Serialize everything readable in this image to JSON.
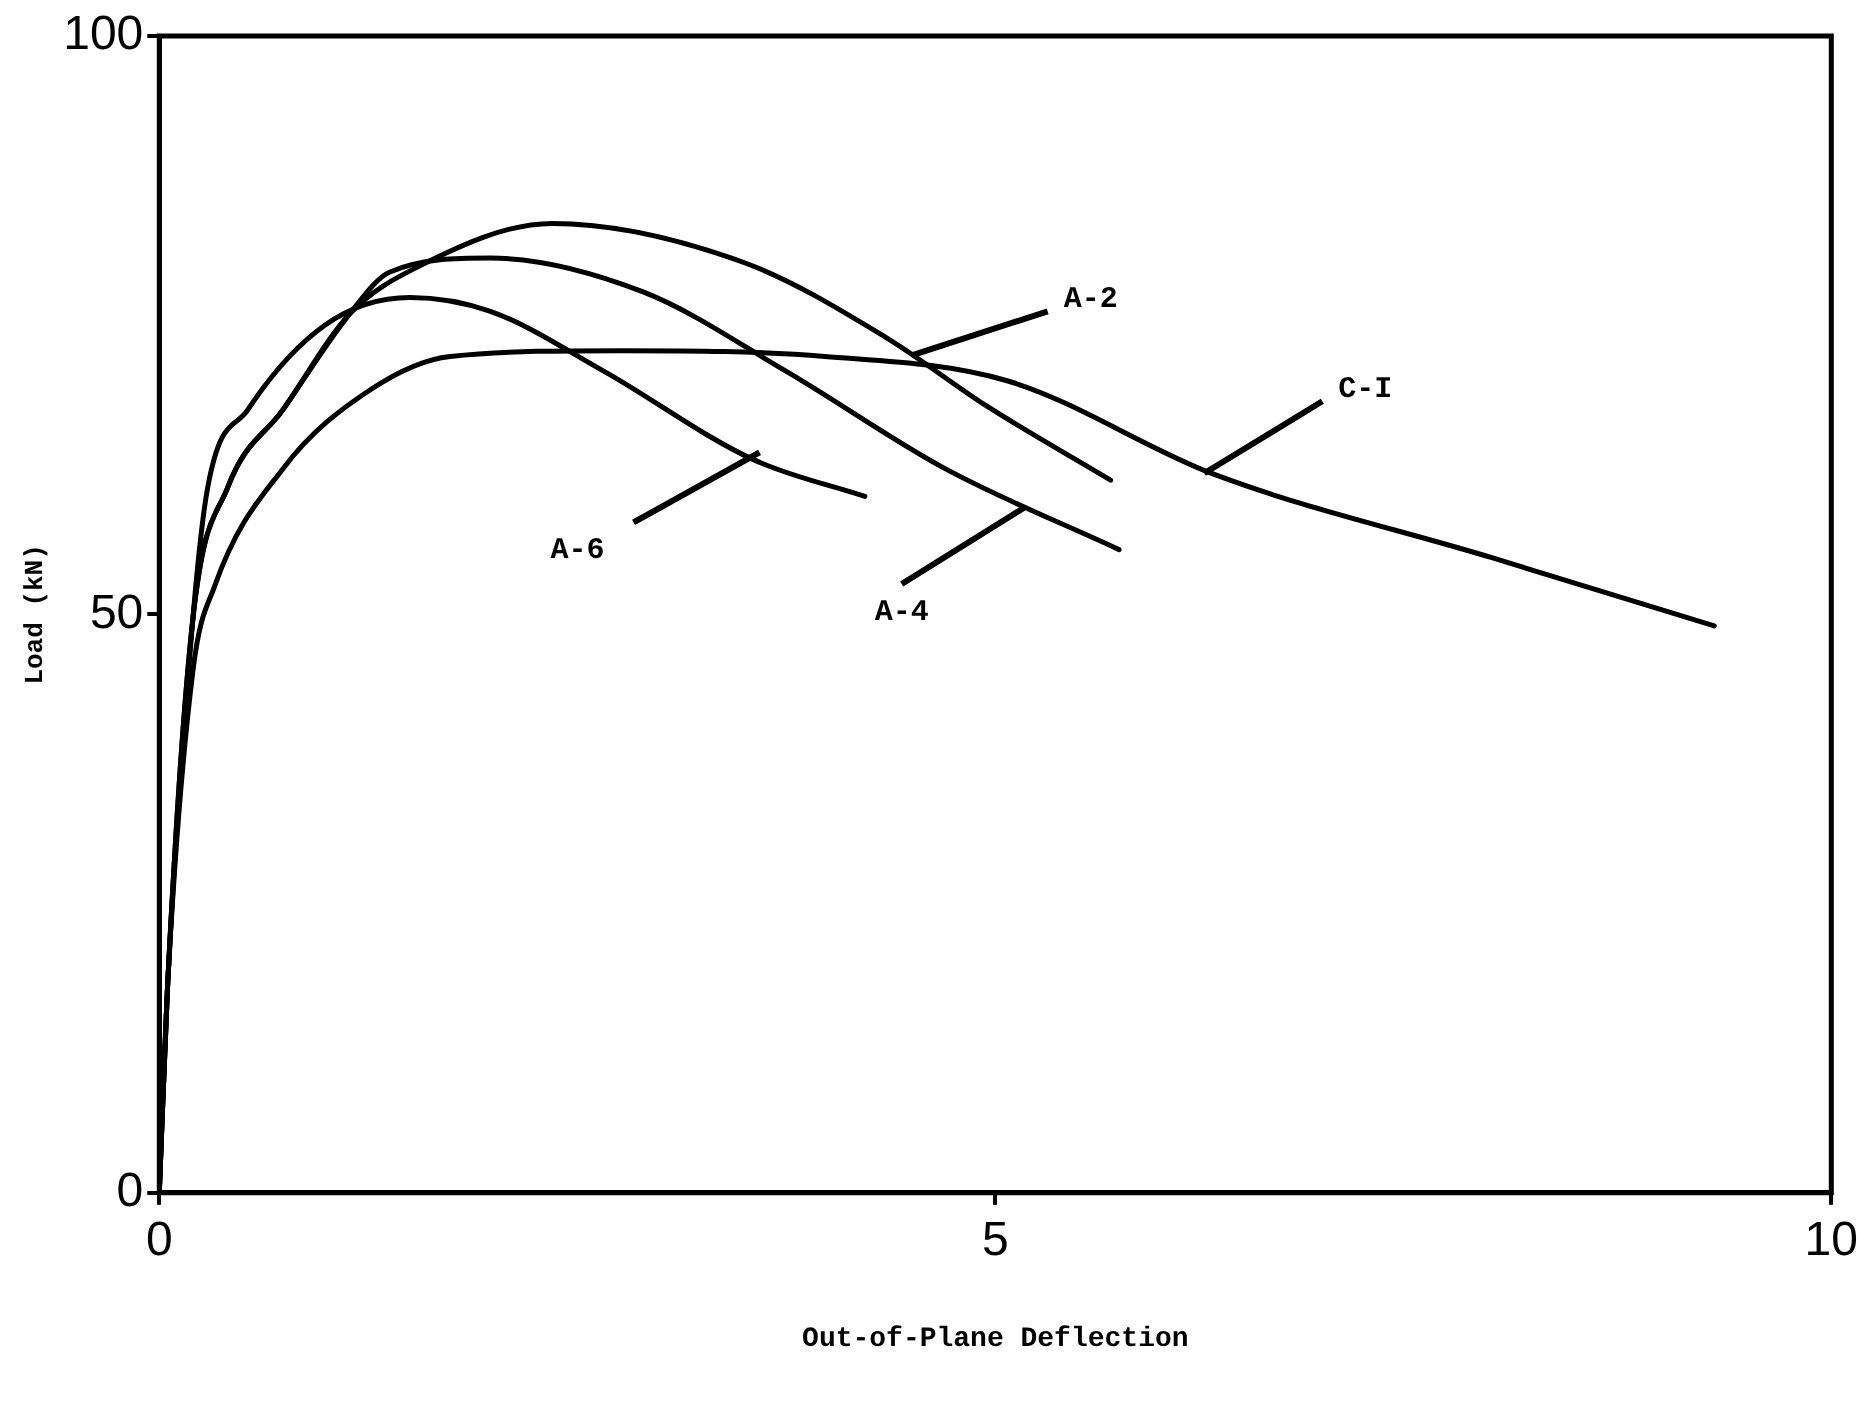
{
  "chart_data": {
    "type": "line",
    "xlabel": "Out-of-Plane Deflection",
    "ylabel": "Load (kN)",
    "xlim": [
      0,
      10
    ],
    "xticks": [
      0,
      5,
      10
    ],
    "ylim": [
      0,
      100
    ],
    "yticks": [
      0,
      50,
      100
    ],
    "grid": false,
    "legend": false,
    "marker": "none",
    "line_style": "solid",
    "series": [
      {
        "color": "#000000",
        "x": [
          0,
          0.05,
          0.2,
          0.41,
          0.74,
          1.14,
          1.54,
          2.35,
          3.5,
          4.34,
          4.95,
          5.69
        ],
        "values": [
          0,
          18,
          49.5,
          61,
          67.7,
          76,
          80,
          83.8,
          80.4,
          74,
          68,
          61.6
        ]
      },
      {
        "color": "#000000",
        "x": [
          0,
          0.05,
          0.2,
          0.41,
          0.74,
          1.14,
          1.38,
          1.98,
          2.89,
          3.74,
          4.7,
          5.74
        ],
        "values": [
          0,
          18,
          49.5,
          61,
          67.7,
          76,
          79.6,
          80.8,
          77.9,
          71.1,
          62.6,
          55.6
        ]
      },
      {
        "color": "#000000",
        "x": [
          0,
          0.05,
          0.2,
          0.29,
          0.53,
          0.99,
          1.5,
          1.98,
          2.65,
          3.55,
          4.22
        ],
        "values": [
          0,
          18,
          49.5,
          61,
          67.7,
          75,
          77.4,
          76.2,
          71.1,
          63.4,
          60.2
        ]
      },
      {
        "color": "#000000",
        "x": [
          0,
          0.05,
          0.2,
          0.33,
          0.74,
          1.26,
          1.74,
          2.77,
          3.98,
          5.07,
          6.31,
          7.97,
          9.3
        ],
        "values": [
          0,
          18,
          45,
          52.4,
          62.6,
          69.4,
          72.3,
          72.8,
          72.3,
          70.2,
          62.1,
          54.9,
          49
        ]
      }
    ],
    "annotations": [
      {
        "text": "A-2",
        "x": 4.5,
        "y": 72.4
      },
      {
        "text": "A-4",
        "x": 5.17,
        "y": 59.2
      },
      {
        "text": "A-6",
        "x": 3.59,
        "y": 64
      },
      {
        "text": "C-I",
        "x": 6.25,
        "y": 62.2
      }
    ]
  }
}
